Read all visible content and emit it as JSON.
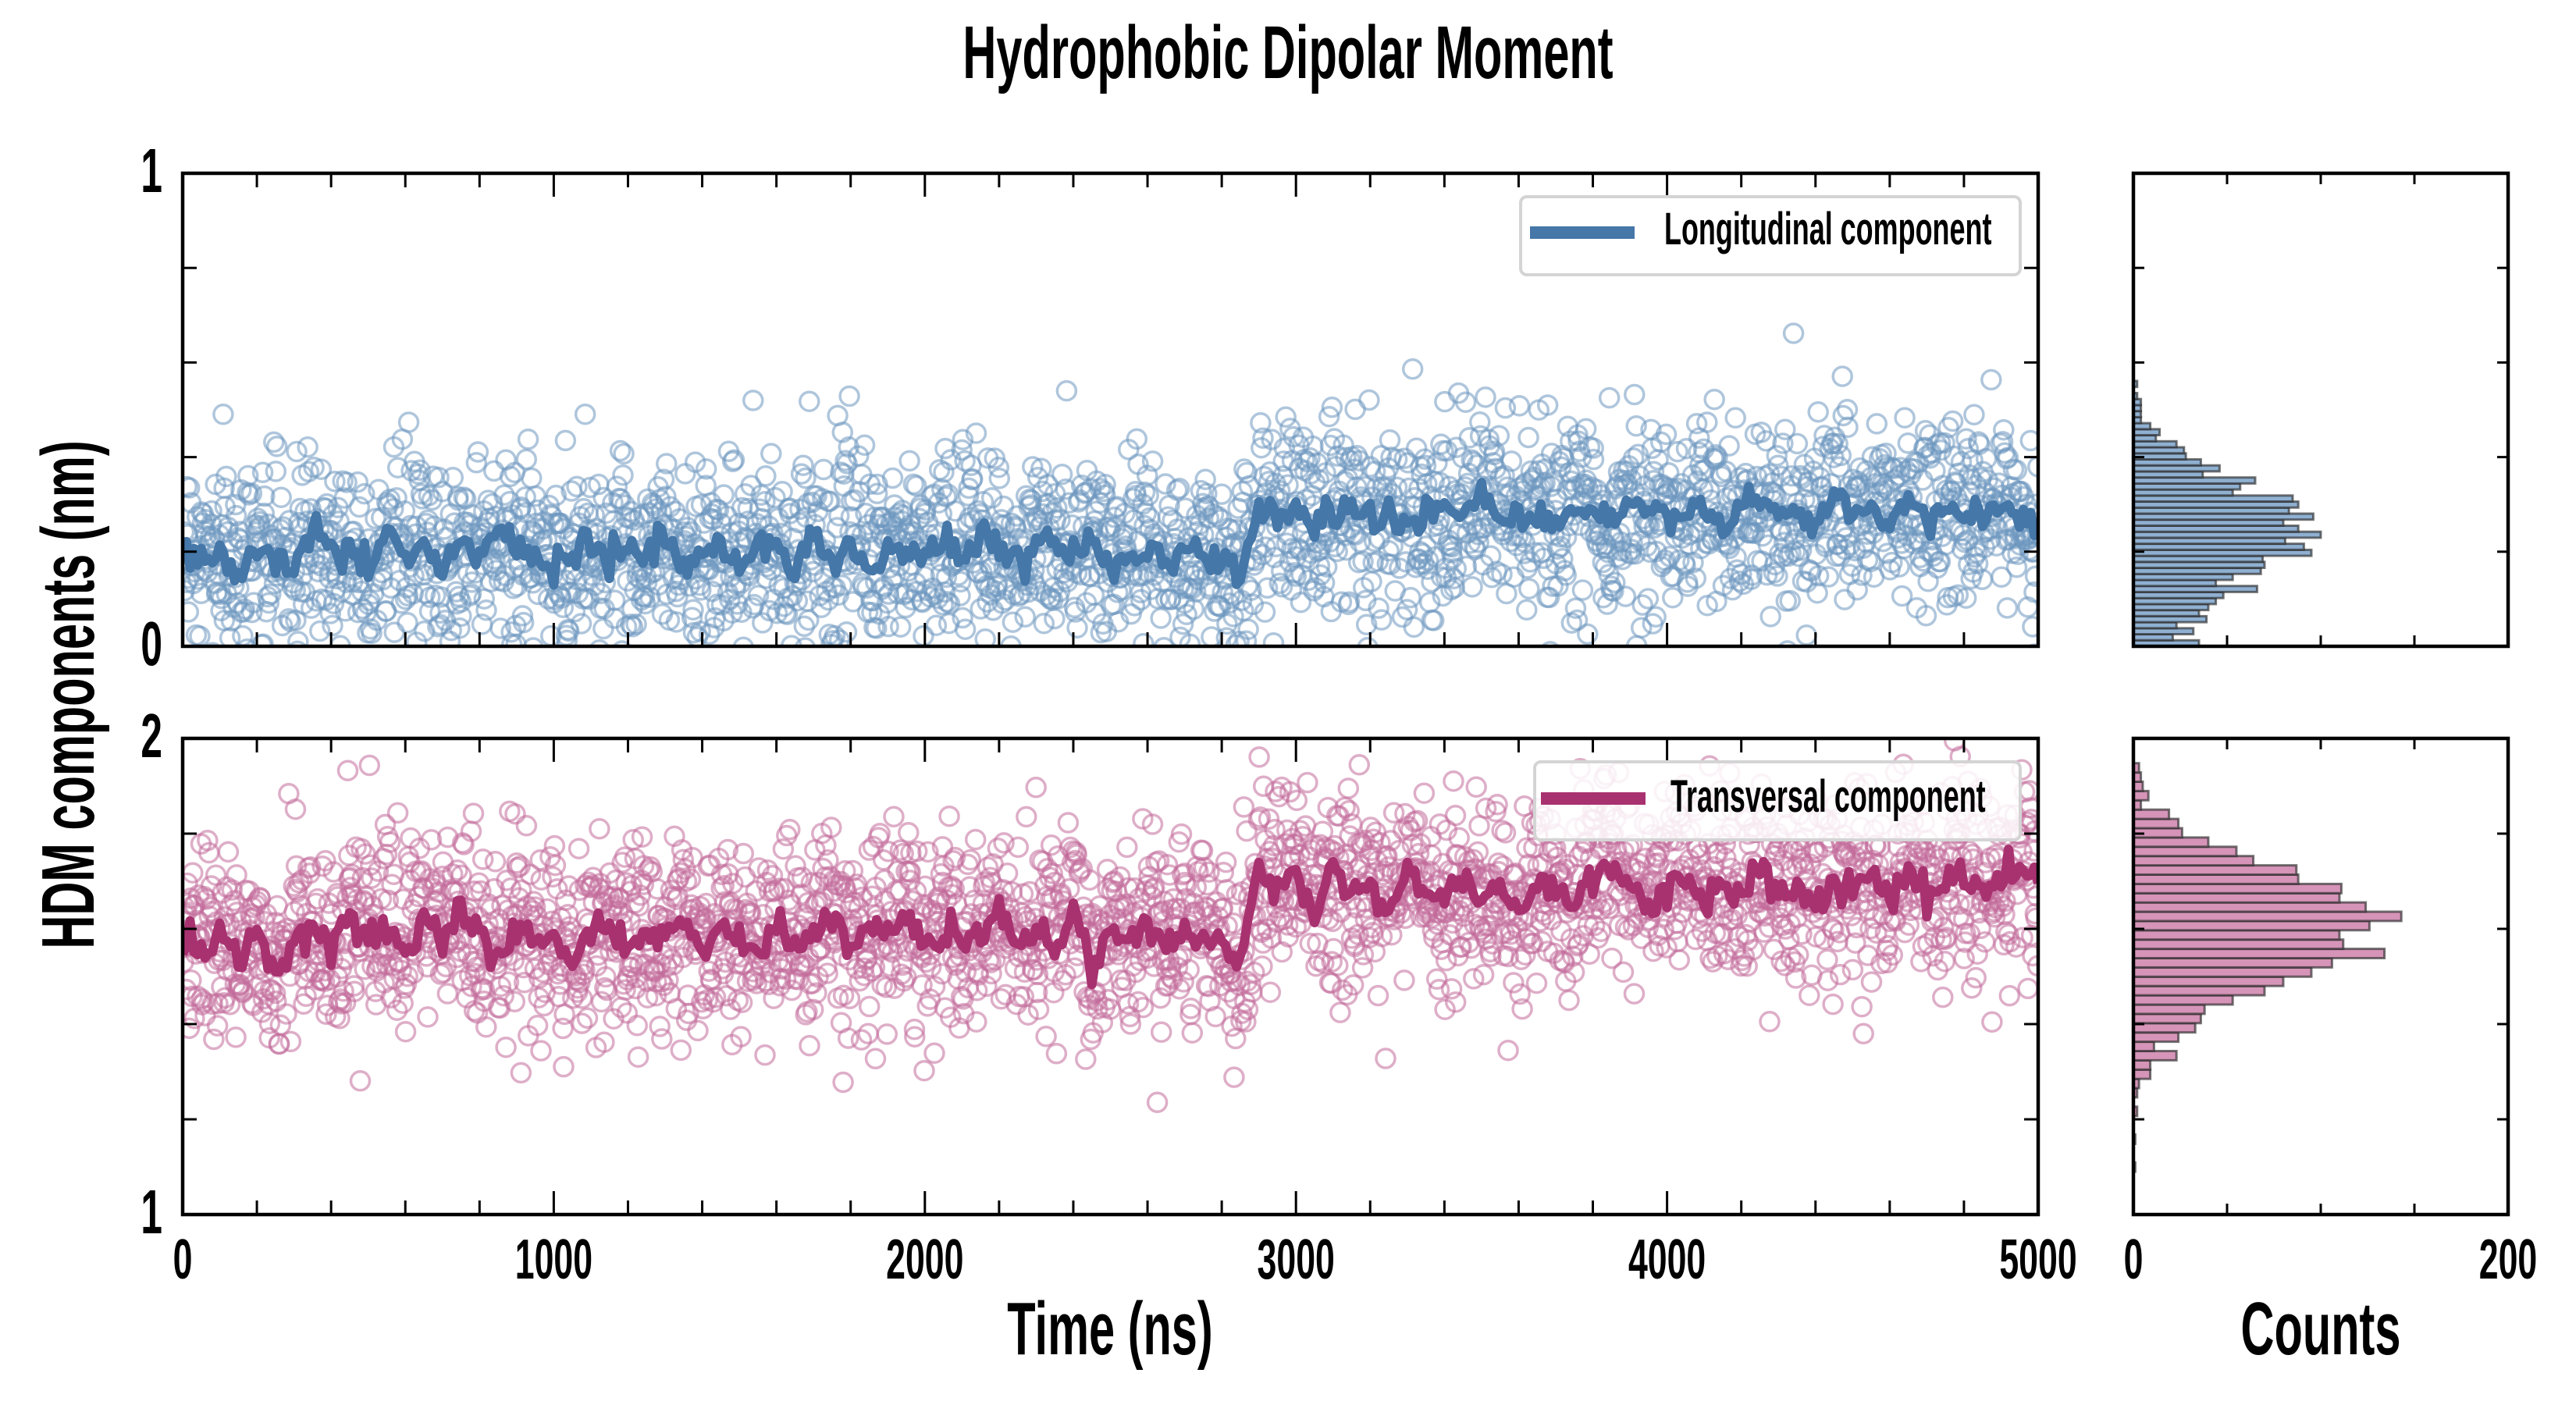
{
  "chart_data": {
    "title": "Hydrophobic Dipolar Moment",
    "ylabel": "HDM components (nm)",
    "panels": [
      {
        "name": "longitudinal",
        "type": "scatter",
        "legend": "Longitudinal component",
        "legend_position": "top-right",
        "color": "#4577a8",
        "scatter_color": "#6e97c0",
        "xlabel": "",
        "xlim": [
          0,
          5000
        ],
        "ylim": [
          0,
          1
        ],
        "xticks": [
          0,
          1000,
          2000,
          3000,
          4000,
          5000
        ],
        "yticks": [
          0,
          1
        ],
        "ytick_labels": [
          "0",
          "1"
        ],
        "minor_y_step": 0.2,
        "minor_x_step": 200,
        "scatter": {
          "n_points": 2500,
          "spread_sd": 0.1,
          "note": "raw per-frame values scattered around the running average"
        },
        "line": {
          "x_step": 50,
          "values": [
            0.21,
            0.19,
            0.2,
            0.16,
            0.22,
            0.19,
            0.17,
            0.24,
            0.2,
            0.21,
            0.18,
            0.23,
            0.19,
            0.21,
            0.17,
            0.22,
            0.2,
            0.23,
            0.19,
            0.21,
            0.15,
            0.2,
            0.22,
            0.18,
            0.21,
            0.19,
            0.24,
            0.17,
            0.2,
            0.22,
            0.18,
            0.21,
            0.2,
            0.17,
            0.23,
            0.19,
            0.22,
            0.16,
            0.2,
            0.21,
            0.18,
            0.22,
            0.19,
            0.24,
            0.2,
            0.17,
            0.22,
            0.21,
            0.19,
            0.23,
            0.18,
            0.2,
            0.22,
            0.17,
            0.21,
            0.19,
            0.18,
            0.16,
            0.29,
            0.27,
            0.3,
            0.25,
            0.28,
            0.31,
            0.27,
            0.29,
            0.26,
            0.28,
            0.3,
            0.27,
            0.33,
            0.26,
            0.28,
            0.27,
            0.25,
            0.29,
            0.28,
            0.26,
            0.3,
            0.27,
            0.29,
            0.28,
            0.31,
            0.26,
            0.28,
            0.3,
            0.27,
            0.29,
            0.25,
            0.31,
            0.28,
            0.29,
            0.26,
            0.3,
            0.27,
            0.29,
            0.28,
            0.26,
            0.3,
            0.28,
            0.24
          ]
        },
        "histogram": {
          "orientation": "horizontal",
          "xlabel": "Counts",
          "xlim": [
            0,
            200
          ],
          "xticks": [
            0,
            200
          ],
          "bin_start": 0.0,
          "bin_width": 0.01275,
          "counts": [
            35,
            21,
            32,
            23,
            39,
            35,
            40,
            44,
            48,
            66,
            44,
            53,
            68,
            70,
            69,
            95,
            91,
            81,
            100,
            88,
            80,
            96,
            83,
            88,
            85,
            53,
            57,
            65,
            37,
            46,
            36,
            28,
            27,
            23,
            12,
            14,
            9,
            4,
            4,
            4,
            4,
            2,
            0,
            2
          ],
          "color": "#8fb0d1"
        }
      },
      {
        "name": "transversal",
        "type": "scatter",
        "legend": "Transversal component",
        "legend_position": "top-right",
        "color": "#a83270",
        "scatter_color": "#c36b9b",
        "xlabel": "Time (ns)",
        "xlim": [
          0,
          5000
        ],
        "ylim": [
          1,
          2
        ],
        "xticks": [
          0,
          1000,
          2000,
          3000,
          4000,
          5000
        ],
        "xtick_labels": [
          "0",
          "1000",
          "2000",
          "3000",
          "4000",
          "5000"
        ],
        "yticks": [
          1,
          2
        ],
        "ytick_labels": [
          "1",
          "2"
        ],
        "minor_y_step": 0.2,
        "minor_x_step": 200,
        "scatter": {
          "n_points": 2500,
          "spread_sd": 0.1,
          "note": "raw per-frame values scattered around the running average"
        },
        "line": {
          "x_step": 50,
          "values": [
            1.58,
            1.55,
            1.6,
            1.53,
            1.62,
            1.48,
            1.59,
            1.61,
            1.56,
            1.63,
            1.58,
            1.6,
            1.54,
            1.62,
            1.57,
            1.64,
            1.59,
            1.55,
            1.61,
            1.57,
            1.58,
            1.53,
            1.6,
            1.62,
            1.56,
            1.59,
            1.57,
            1.63,
            1.55,
            1.6,
            1.58,
            1.54,
            1.61,
            1.57,
            1.59,
            1.63,
            1.56,
            1.6,
            1.58,
            1.62,
            1.55,
            1.61,
            1.57,
            1.59,
            1.64,
            1.58,
            1.6,
            1.56,
            1.63,
            1.52,
            1.59,
            1.57,
            1.61,
            1.55,
            1.6,
            1.58,
            1.56,
            1.54,
            1.73,
            1.68,
            1.7,
            1.66,
            1.72,
            1.67,
            1.69,
            1.65,
            1.71,
            1.68,
            1.66,
            1.7,
            1.67,
            1.69,
            1.64,
            1.71,
            1.68,
            1.66,
            1.7,
            1.72,
            1.67,
            1.65,
            1.69,
            1.71,
            1.66,
            1.7,
            1.68,
            1.73,
            1.67,
            1.69,
            1.65,
            1.71,
            1.68,
            1.7,
            1.66,
            1.72,
            1.67,
            1.69,
            1.71,
            1.68,
            1.7,
            1.73,
            1.7
          ]
        },
        "histogram": {
          "orientation": "horizontal",
          "xlabel": "Counts",
          "xlim": [
            0,
            200
          ],
          "xticks": [
            0,
            200
          ],
          "xtick_labels": [
            "0",
            "200"
          ],
          "bin_start": 1.09,
          "bin_width": 0.0195,
          "counts": [
            1,
            0,
            0,
            1,
            0,
            0,
            2,
            0,
            2,
            3,
            9,
            9,
            23,
            11,
            24,
            33,
            36,
            38,
            53,
            70,
            80,
            95,
            106,
            134,
            112,
            110,
            126,
            143,
            124,
            110,
            111,
            88,
            87,
            64,
            55,
            40,
            26,
            24,
            19,
            4,
            8,
            5,
            4,
            3
          ],
          "color": "#d594b8"
        }
      }
    ]
  }
}
